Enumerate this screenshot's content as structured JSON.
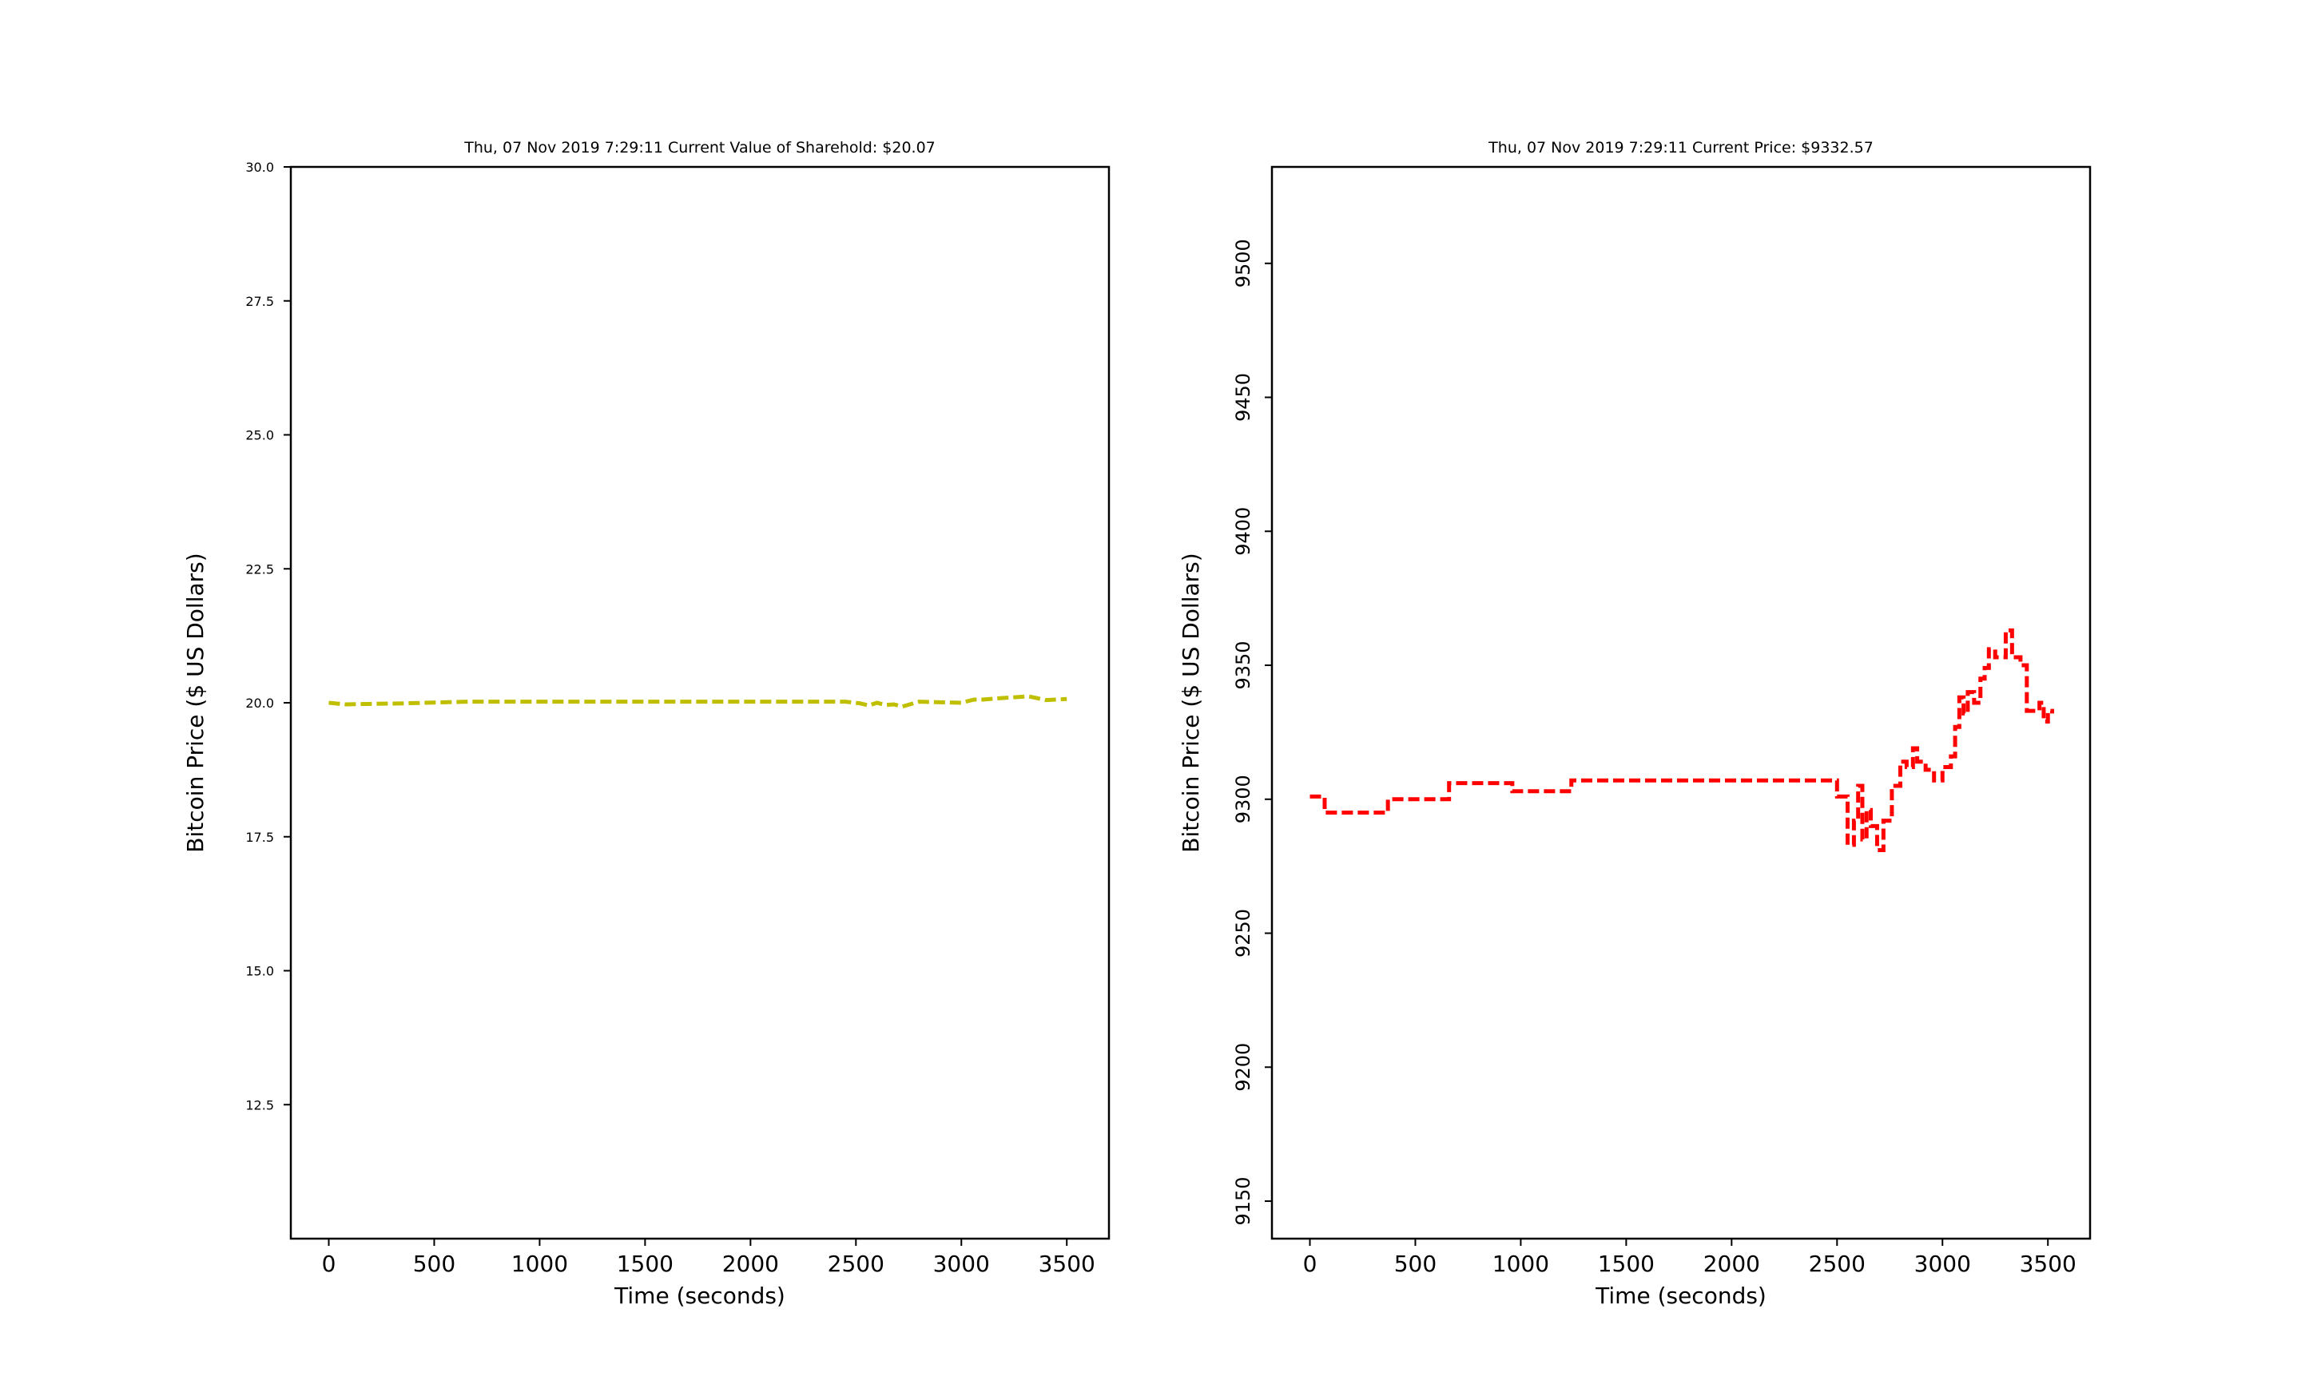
{
  "chart_data": [
    {
      "type": "line",
      "title": "Thu, 07 Nov 2019 7:29:11 Current Value of Sharehold: $20.07",
      "xlabel": "Time (seconds)",
      "ylabel": "Bitcoin Price ($ US Dollars)",
      "xlim": [
        -180,
        3700
      ],
      "ylim": [
        10,
        30
      ],
      "xticks": [
        0,
        500,
        1000,
        1500,
        2000,
        2500,
        3000,
        3500
      ],
      "yticks": [
        12.5,
        15.0,
        17.5,
        20.0,
        22.5,
        25.0,
        27.5,
        30.0
      ],
      "ytick_labels": [
        "12.5",
        "15.0",
        "17.5",
        "20.0",
        "22.5",
        "25.0",
        "27.5",
        "30.0"
      ],
      "grid": false,
      "series": [
        {
          "line_style": "dashed",
          "color": "#bfbf00",
          "x": [
            0,
            80,
            360,
            660,
            1000,
            1500,
            2000,
            2450,
            2520,
            2560,
            2600,
            2640,
            2680,
            2720,
            2800,
            2900,
            3000,
            3060,
            3100,
            3200,
            3320,
            3400,
            3500
          ],
          "y": [
            20.0,
            19.97,
            19.99,
            20.02,
            20.02,
            20.02,
            20.02,
            20.02,
            19.99,
            19.95,
            20.0,
            19.96,
            19.97,
            19.93,
            20.02,
            20.01,
            20.0,
            20.06,
            20.06,
            20.09,
            20.12,
            20.05,
            20.07
          ]
        }
      ]
    },
    {
      "type": "line",
      "title": "Thu, 07 Nov 2019 7:29:11 Current Price: $9332.57",
      "xlabel": "Time (seconds)",
      "ylabel": "Bitcoin Price ($ US Dollars)",
      "xlim": [
        -180,
        3700
      ],
      "ylim": [
        9136,
        9536
      ],
      "xticks": [
        0,
        500,
        1000,
        1500,
        2000,
        2500,
        3000,
        3500
      ],
      "yticks": [
        9150,
        9200,
        9250,
        9300,
        9350,
        9400,
        9450,
        9500
      ],
      "ytick_labels": [
        "9150",
        "9200",
        "9250",
        "9300",
        "9350",
        "9400",
        "9450",
        "9500"
      ],
      "grid": false,
      "series": [
        {
          "line_style": "dashed",
          "color": "#ff0000",
          "step": true,
          "x": [
            0,
            70,
            370,
            660,
            960,
            1240,
            1500,
            2000,
            2440,
            2500,
            2550,
            2580,
            2600,
            2620,
            2640,
            2660,
            2690,
            2720,
            2760,
            2800,
            2830,
            2860,
            2880,
            2920,
            2960,
            3000,
            3040,
            3060,
            3080,
            3100,
            3120,
            3150,
            3180,
            3200,
            3220,
            3250,
            3300,
            3330,
            3370,
            3400,
            3430,
            3460,
            3480,
            3500,
            3520
          ],
          "y": [
            9301,
            9295,
            9300,
            9306,
            9303,
            9307,
            9307,
            9307,
            9307,
            9301,
            9283,
            9292,
            9305,
            9285,
            9296,
            9290,
            9281,
            9292,
            9305,
            9314,
            9312,
            9319,
            9314,
            9311,
            9307,
            9312,
            9316,
            9327,
            9338,
            9332,
            9340,
            9336,
            9345,
            9349,
            9356,
            9353,
            9363,
            9353,
            9350,
            9333,
            9333,
            9336,
            9329,
            9333,
            9332
          ]
        }
      ]
    }
  ]
}
